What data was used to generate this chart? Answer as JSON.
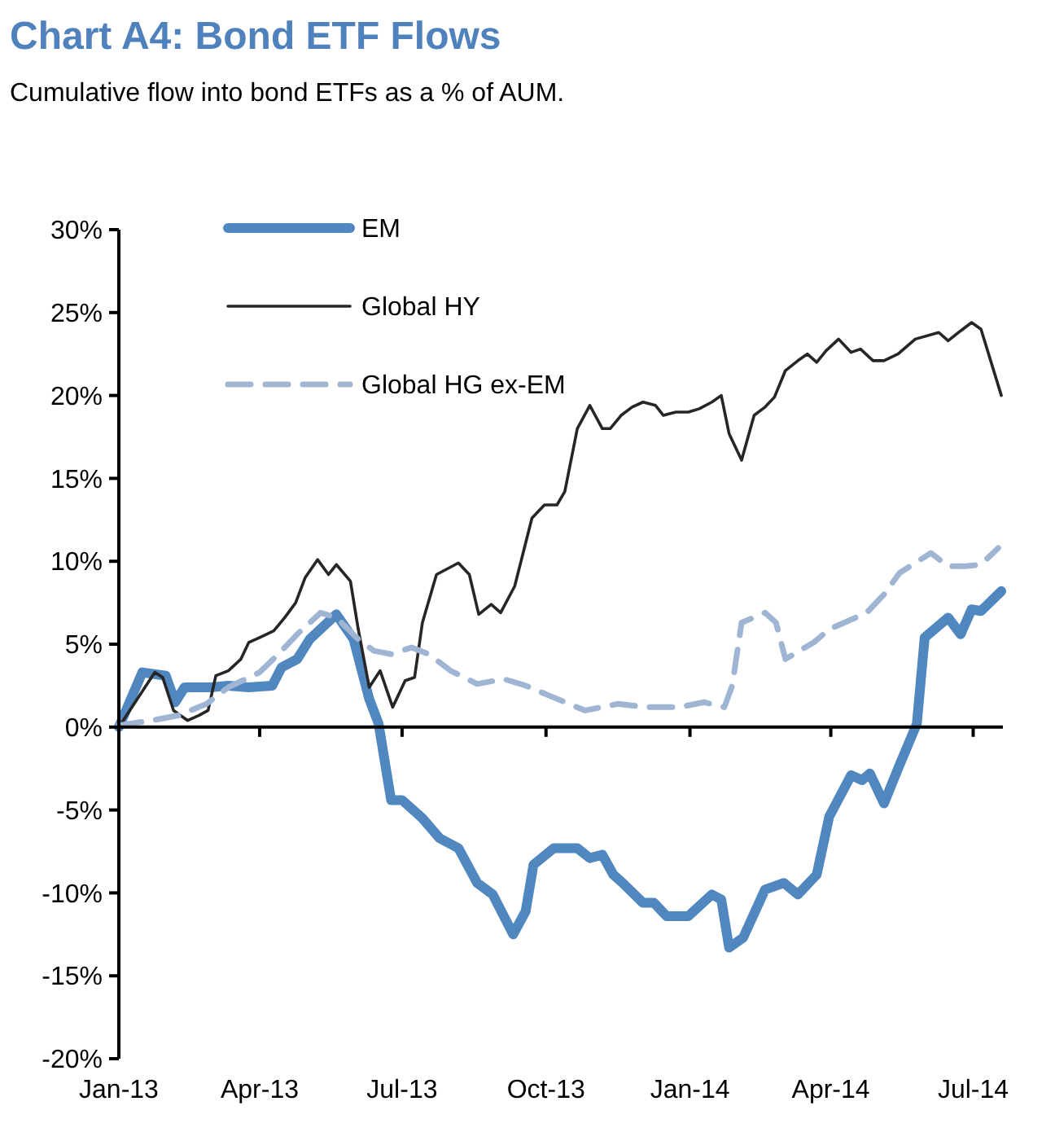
{
  "chart_data": {
    "type": "line",
    "title": "Chart A4: Bond ETF Flows",
    "subtitle": "Cumulative flow into bond ETFs as a % of AUM.",
    "xlim": [
      "2013-01-01",
      "2014-07-20"
    ],
    "xticks": [
      {
        "value": "2013-01-01",
        "label": "Jan-13"
      },
      {
        "value": "2013-04-01",
        "label": "Apr-13"
      },
      {
        "value": "2013-07-01",
        "label": "Jul-13"
      },
      {
        "value": "2013-10-01",
        "label": "Oct-13"
      },
      {
        "value": "2014-01-01",
        "label": "Jan-14"
      },
      {
        "value": "2014-04-01",
        "label": "Apr-14"
      },
      {
        "value": "2014-07-01",
        "label": "Jul-14"
      }
    ],
    "ylim": [
      -20,
      30
    ],
    "yticks": [
      {
        "value": -20,
        "label": "-20%"
      },
      {
        "value": -15,
        "label": "-15%"
      },
      {
        "value": -10,
        "label": "-10%"
      },
      {
        "value": -5,
        "label": "-5%"
      },
      {
        "value": 0,
        "label": "0%"
      },
      {
        "value": 5,
        "label": "5%"
      },
      {
        "value": 10,
        "label": "10%"
      },
      {
        "value": 15,
        "label": "15%"
      },
      {
        "value": 20,
        "label": "20%"
      },
      {
        "value": 25,
        "label": "25%"
      },
      {
        "value": 30,
        "label": "30%"
      }
    ],
    "legend": "top left",
    "marker": "none",
    "series": [
      {
        "name": "EM",
        "color": "#4f87be",
        "line_style": "solid",
        "x": [
          "2013-01-01",
          "2013-01-16",
          "2013-01-31",
          "2013-02-06",
          "2013-02-12",
          "2013-03-01",
          "2013-03-12",
          "2013-03-25",
          "2013-04-09",
          "2013-04-15",
          "2013-04-25",
          "2013-05-03",
          "2013-05-20",
          "2013-05-31",
          "2013-06-10",
          "2013-06-16",
          "2013-06-24",
          "2013-07-01",
          "2013-07-14",
          "2013-07-25",
          "2013-08-06",
          "2013-08-18",
          "2013-08-28",
          "2013-09-10",
          "2013-09-18",
          "2013-09-23",
          "2013-10-06",
          "2013-10-21",
          "2013-10-29",
          "2013-11-06",
          "2013-11-13",
          "2013-11-19",
          "2013-12-02",
          "2013-12-09",
          "2013-12-17",
          "2013-12-31",
          "2014-01-15",
          "2014-01-21",
          "2014-01-26",
          "2014-02-04",
          "2014-02-18",
          "2014-03-02",
          "2014-03-11",
          "2014-03-23",
          "2014-03-31",
          "2014-04-14",
          "2014-04-21",
          "2014-04-26",
          "2014-05-05",
          "2014-05-14",
          "2014-05-26",
          "2014-05-31",
          "2014-06-15",
          "2014-06-23",
          "2014-06-30",
          "2014-07-06",
          "2014-07-19"
        ],
        "values": [
          0,
          3.3,
          3.1,
          1.5,
          2.4,
          2.4,
          2.5,
          2.4,
          2.5,
          3.6,
          4.1,
          5.3,
          6.8,
          5.3,
          1.7,
          0.2,
          -4.4,
          -4.4,
          -5.5,
          -6.7,
          -7.3,
          -9.4,
          -10.1,
          -12.5,
          -11.1,
          -8.3,
          -7.3,
          -7.3,
          -7.9,
          -7.7,
          -8.9,
          -9.4,
          -10.6,
          -10.6,
          -11.4,
          -11.4,
          -10.1,
          -10.4,
          -13.3,
          -12.7,
          -9.8,
          -9.4,
          -10.1,
          -8.9,
          -5.4,
          -2.9,
          -3.2,
          -2.8,
          -4.6,
          -2.5,
          0.2,
          5.4,
          6.6,
          5.6,
          7.1,
          7.0,
          8.2
        ]
      },
      {
        "name": "Global HY",
        "color": "#262626",
        "line_style": "solid",
        "x": [
          "2013-01-01",
          "2013-01-24",
          "2013-01-29",
          "2013-02-05",
          "2013-02-14",
          "2013-02-21",
          "2013-02-27",
          "2013-03-04",
          "2013-03-12",
          "2013-03-20",
          "2013-03-25",
          "2013-04-01",
          "2013-04-10",
          "2013-04-17",
          "2013-04-24",
          "2013-04-30",
          "2013-05-08",
          "2013-05-15",
          "2013-05-20",
          "2013-05-29",
          "2013-06-03",
          "2013-06-10",
          "2013-06-17",
          "2013-06-25",
          "2013-07-03",
          "2013-07-09",
          "2013-07-14",
          "2013-07-23",
          "2013-08-06",
          "2013-08-13",
          "2013-08-19",
          "2013-08-27",
          "2013-09-02",
          "2013-09-11",
          "2013-09-22",
          "2013-09-30",
          "2013-10-08",
          "2013-10-13",
          "2013-10-21",
          "2013-10-29",
          "2013-11-06",
          "2013-11-11",
          "2013-11-18",
          "2013-11-25",
          "2013-12-02",
          "2013-12-10",
          "2013-12-15",
          "2013-12-23",
          "2013-12-31",
          "2014-01-07",
          "2014-01-15",
          "2014-01-21",
          "2014-01-26",
          "2014-02-03",
          "2014-02-11",
          "2014-02-18",
          "2014-02-24",
          "2014-03-03",
          "2014-03-11",
          "2014-03-17",
          "2014-03-23",
          "2014-03-29",
          "2014-04-06",
          "2014-04-14",
          "2014-04-20",
          "2014-04-28",
          "2014-05-05",
          "2014-05-14",
          "2014-05-25",
          "2014-06-09",
          "2014-06-15",
          "2014-06-23",
          "2014-06-30",
          "2014-07-06",
          "2014-07-19"
        ],
        "values": [
          0,
          3.3,
          3.0,
          1.0,
          0.4,
          0.7,
          1.0,
          3.1,
          3.4,
          4.1,
          5.1,
          5.4,
          5.8,
          6.6,
          7.5,
          9.0,
          10.1,
          9.2,
          9.8,
          8.8,
          5.9,
          2.4,
          3.4,
          1.2,
          2.8,
          3.0,
          6.3,
          9.2,
          9.9,
          9.2,
          6.8,
          7.4,
          6.9,
          8.5,
          12.6,
          13.4,
          13.4,
          14.2,
          18.0,
          19.4,
          18.0,
          18.0,
          18.8,
          19.3,
          19.6,
          19.4,
          18.8,
          19.0,
          19.0,
          19.2,
          19.6,
          20.0,
          17.7,
          16.1,
          18.8,
          19.3,
          19.9,
          21.5,
          22.1,
          22.5,
          22.0,
          22.7,
          23.4,
          22.6,
          22.8,
          22.1,
          22.1,
          22.5,
          23.4,
          23.8,
          23.3,
          23.9,
          24.4,
          24.0,
          20.0
        ]
      },
      {
        "name": "Global HG ex-EM",
        "color": "#9fb5d3",
        "line_style": "dashed",
        "x": [
          "2013-01-01",
          "2013-01-22",
          "2013-02-08",
          "2013-02-26",
          "2013-03-12",
          "2013-04-01",
          "2013-04-15",
          "2013-04-25",
          "2013-05-10",
          "2013-05-20",
          "2013-06-03",
          "2013-06-13",
          "2013-06-24",
          "2013-07-07",
          "2013-07-18",
          "2013-08-01",
          "2013-08-18",
          "2013-09-04",
          "2013-09-18",
          "2013-10-03",
          "2013-10-26",
          "2013-11-16",
          "2013-12-04",
          "2013-12-25",
          "2014-01-10",
          "2014-01-23",
          "2014-01-28",
          "2014-02-03",
          "2014-02-18",
          "2014-02-25",
          "2014-03-03",
          "2014-03-21",
          "2014-03-31",
          "2014-04-24",
          "2014-05-05",
          "2014-05-15",
          "2014-06-04",
          "2014-06-15",
          "2014-06-26",
          "2014-07-06",
          "2014-07-17"
        ],
        "values": [
          0.1,
          0.4,
          0.7,
          1.4,
          2.4,
          3.3,
          4.6,
          5.6,
          6.9,
          6.6,
          5.3,
          4.6,
          4.4,
          4.8,
          4.4,
          3.4,
          2.6,
          2.9,
          2.5,
          1.9,
          1.0,
          1.4,
          1.2,
          1.2,
          1.5,
          1.2,
          2.5,
          6.3,
          6.9,
          6.3,
          4.1,
          5.1,
          5.9,
          6.9,
          8.0,
          9.3,
          10.5,
          9.7,
          9.7,
          9.8,
          10.8
        ]
      }
    ]
  }
}
